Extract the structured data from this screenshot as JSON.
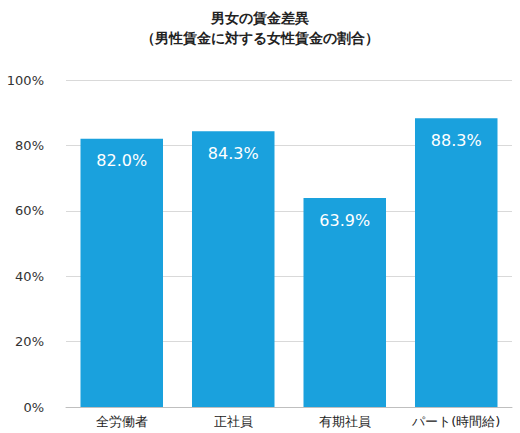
{
  "chart_data": {
    "type": "bar",
    "title": "男女の賃金差異",
    "subtitle": "（男性賃金に対する女性賃金の割合）",
    "categories": [
      "全労働者",
      "正社員",
      "有期社員",
      "パート(時間給)"
    ],
    "values": [
      82.0,
      84.3,
      63.9,
      88.3
    ],
    "value_labels": [
      "82.0%",
      "84.3%",
      "63.9%",
      "88.3%"
    ],
    "color": "#1aa1dd",
    "ylim": [
      0,
      100
    ],
    "yticks": [
      {
        "value": 0,
        "label": "0%"
      },
      {
        "value": 20,
        "label": "20%"
      },
      {
        "value": 40,
        "label": "40%"
      },
      {
        "value": 60,
        "label": "60%"
      },
      {
        "value": 80,
        "label": "80%"
      },
      {
        "value": 100,
        "label": "100%"
      }
    ],
    "grid": true,
    "data_labels": true
  }
}
